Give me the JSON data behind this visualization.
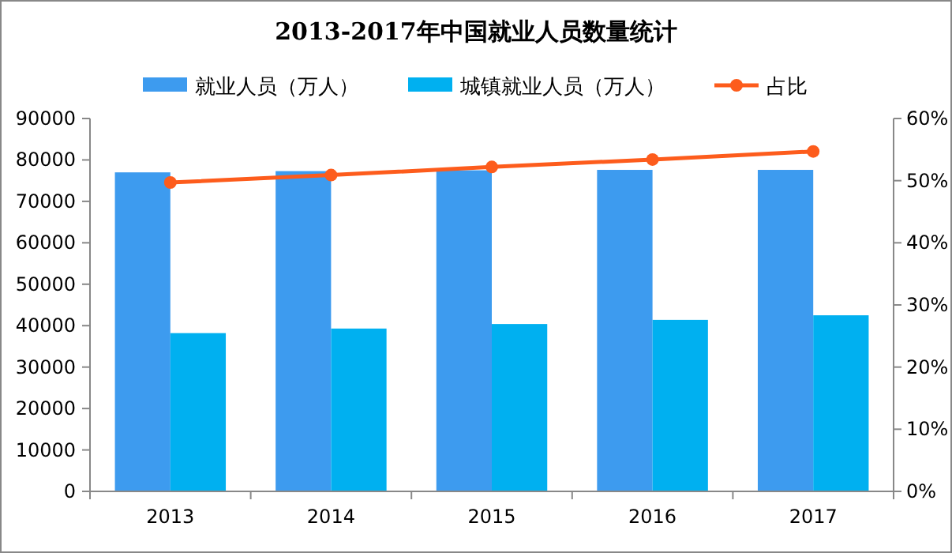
{
  "chart_data": {
    "type": "bar",
    "title": "2013-2017年中国就业人员数量统计",
    "categories": [
      "2013",
      "2014",
      "2015",
      "2016",
      "2017"
    ],
    "series": [
      {
        "name": "就业人员（万人）",
        "color": "#3d9bef",
        "values": [
          77000,
          77300,
          77500,
          77600,
          77600
        ]
      },
      {
        "name": "城镇就业人员（万人）",
        "color": "#00b0f0",
        "values": [
          38200,
          39300,
          40400,
          41400,
          42500
        ]
      },
      {
        "name": "占比",
        "type": "line",
        "axis": "y2",
        "color": "#fd5c1c",
        "marker": "circle",
        "values": [
          49.7,
          50.9,
          52.2,
          53.4,
          54.7
        ]
      }
    ],
    "ylim": [
      0,
      90000
    ],
    "yticks": [
      0,
      10000,
      20000,
      30000,
      40000,
      50000,
      60000,
      70000,
      80000,
      90000
    ],
    "y2lim": [
      0,
      60
    ],
    "y2ticks": [
      {
        "value": 0,
        "label": "0%"
      },
      {
        "value": 10,
        "label": "10%"
      },
      {
        "value": 20,
        "label": "20%"
      },
      {
        "value": 30,
        "label": "30%"
      },
      {
        "value": 40,
        "label": "40%"
      },
      {
        "value": 50,
        "label": "50%"
      },
      {
        "value": 60,
        "label": "60%"
      }
    ],
    "legend": "top",
    "grid": false
  }
}
